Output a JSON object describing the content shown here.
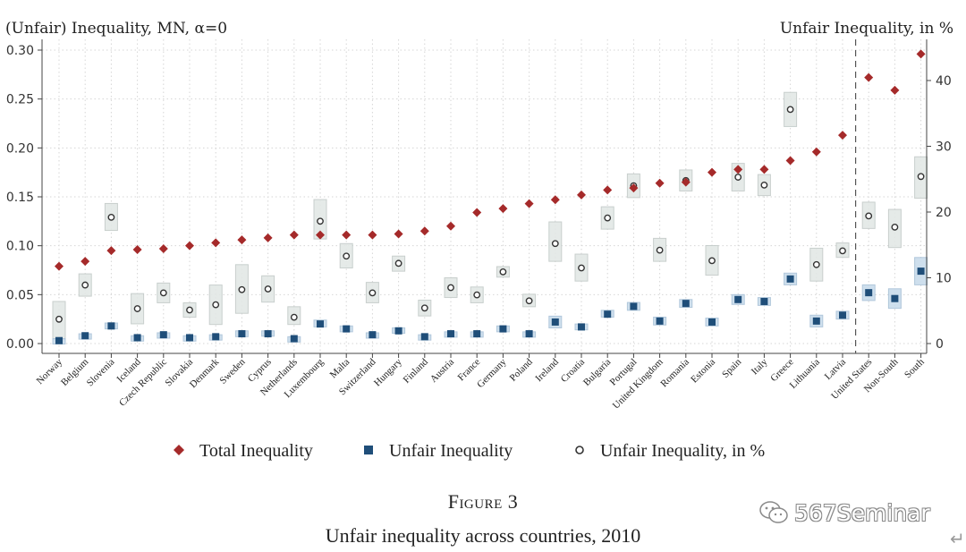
{
  "chart_data": {
    "type": "scatter",
    "left_axis_title": "(Unfair) Inequality, MN, α=0",
    "right_axis_title": "Unfair Inequality, in %",
    "left_ylim": [
      0,
      0.3
    ],
    "left_ticks": [
      "0.00",
      "0.05",
      "0.10",
      "0.15",
      "0.20",
      "0.25",
      "0.30"
    ],
    "left_tick_values": [
      0,
      0.05,
      0.1,
      0.15,
      0.2,
      0.25,
      0.3
    ],
    "right_ylim": [
      0,
      45
    ],
    "right_ticks": [
      "0",
      "10",
      "20",
      "30",
      "40"
    ],
    "right_tick_values": [
      0,
      10,
      20,
      30,
      40
    ],
    "grid": true,
    "categories": [
      "Norway",
      "Belgium",
      "Slovenia",
      "Iceland",
      "Czech Republic",
      "Slovakia",
      "Denmark",
      "Sweden",
      "Cyprus",
      "Netherlands",
      "Luxembourg",
      "Malta",
      "Switzerland",
      "Hungary",
      "Finland",
      "Austria",
      "France",
      "Germany",
      "Poland",
      "Ireland",
      "Croatia",
      "Bulgaria",
      "Portugal",
      "United Kingdom",
      "Romania",
      "Estonia",
      "Spain",
      "Italy",
      "Greece",
      "Lithuania",
      "Latvia",
      "United States",
      "Non-South",
      "South"
    ],
    "separator_after": "Latvia",
    "series": [
      {
        "name": "Total Inequality",
        "axis": "left",
        "marker": "diamond",
        "color": "#a52a2a",
        "values": [
          0.079,
          0.084,
          0.095,
          0.096,
          0.097,
          0.1,
          0.103,
          0.106,
          0.108,
          0.111,
          0.111,
          0.111,
          0.111,
          0.112,
          0.115,
          0.12,
          0.134,
          0.138,
          0.143,
          0.147,
          0.152,
          0.157,
          0.159,
          0.164,
          0.165,
          0.175,
          0.178,
          0.178,
          0.187,
          0.196,
          0.213,
          0.272,
          0.259,
          0.296
        ]
      },
      {
        "name": "Unfair Inequality",
        "axis": "left",
        "marker": "square",
        "color": "#1f4e79",
        "values": [
          0.003,
          0.008,
          0.018,
          0.006,
          0.009,
          0.006,
          0.007,
          0.01,
          0.01,
          0.005,
          0.02,
          0.015,
          0.009,
          0.013,
          0.007,
          0.01,
          0.01,
          0.015,
          0.01,
          0.022,
          0.017,
          0.03,
          0.038,
          0.023,
          0.041,
          0.022,
          0.045,
          0.043,
          0.066,
          0.023,
          0.029,
          0.052,
          0.046,
          0.074
        ],
        "ci_low": [
          0.002,
          0.006,
          0.015,
          0.004,
          0.007,
          0.005,
          0.005,
          0.007,
          0.008,
          0.003,
          0.017,
          0.012,
          0.007,
          0.011,
          0.005,
          0.008,
          0.008,
          0.012,
          0.008,
          0.016,
          0.014,
          0.027,
          0.034,
          0.019,
          0.037,
          0.018,
          0.04,
          0.039,
          0.06,
          0.017,
          0.025,
          0.044,
          0.036,
          0.06
        ],
        "ci_high": [
          0.005,
          0.01,
          0.021,
          0.008,
          0.011,
          0.008,
          0.009,
          0.013,
          0.013,
          0.007,
          0.024,
          0.018,
          0.011,
          0.016,
          0.009,
          0.012,
          0.012,
          0.018,
          0.012,
          0.028,
          0.02,
          0.034,
          0.042,
          0.027,
          0.045,
          0.026,
          0.05,
          0.047,
          0.072,
          0.029,
          0.033,
          0.06,
          0.056,
          0.088
        ]
      },
      {
        "name": "Unfair Inequality, in %",
        "axis": "right",
        "marker": "circle",
        "color": "#333333",
        "values": [
          3.7,
          8.9,
          19.2,
          5.3,
          7.7,
          5.1,
          5.9,
          8.2,
          8.3,
          4.0,
          18.6,
          13.3,
          7.7,
          12.2,
          5.4,
          8.5,
          7.4,
          10.9,
          6.5,
          15.2,
          11.5,
          19.1,
          24.0,
          14.2,
          24.8,
          12.6,
          25.3,
          24.1,
          35.6,
          12.0,
          14.1,
          19.4,
          17.7,
          25.4
        ],
        "ci_low": [
          0.6,
          7.2,
          17.2,
          3.0,
          6.2,
          4.0,
          2.9,
          4.6,
          6.3,
          2.9,
          15.9,
          11.5,
          6.2,
          11.0,
          4.2,
          7.0,
          6.2,
          10.1,
          5.6,
          12.5,
          9.5,
          17.4,
          22.2,
          12.5,
          23.2,
          10.4,
          23.2,
          22.5,
          33.0,
          9.5,
          13.1,
          17.5,
          14.6,
          22.1
        ],
        "ci_high": [
          6.4,
          10.6,
          21.3,
          7.6,
          9.2,
          6.2,
          8.9,
          12.0,
          10.3,
          5.6,
          21.9,
          15.2,
          9.3,
          13.3,
          6.6,
          10.0,
          8.6,
          11.7,
          7.5,
          18.5,
          13.6,
          20.8,
          25.8,
          16.0,
          26.4,
          14.9,
          27.4,
          25.7,
          38.2,
          14.5,
          15.3,
          21.5,
          20.4,
          28.4
        ]
      }
    ]
  },
  "legend": [
    {
      "label": "Total Inequality",
      "marker": "diamond",
      "color": "#a52a2a"
    },
    {
      "label": "Unfair Inequality",
      "marker": "square",
      "color": "#1f4e79"
    },
    {
      "label": "Unfair Inequality, in %",
      "marker": "circle",
      "color": "#333333"
    }
  ],
  "figure": {
    "label": "Figure 3",
    "title": "Unfair inequality across countries, 2010"
  },
  "watermark": {
    "text": "567Seminar",
    "icon": "wechat-logo-icon"
  },
  "return_glyph": "↵"
}
